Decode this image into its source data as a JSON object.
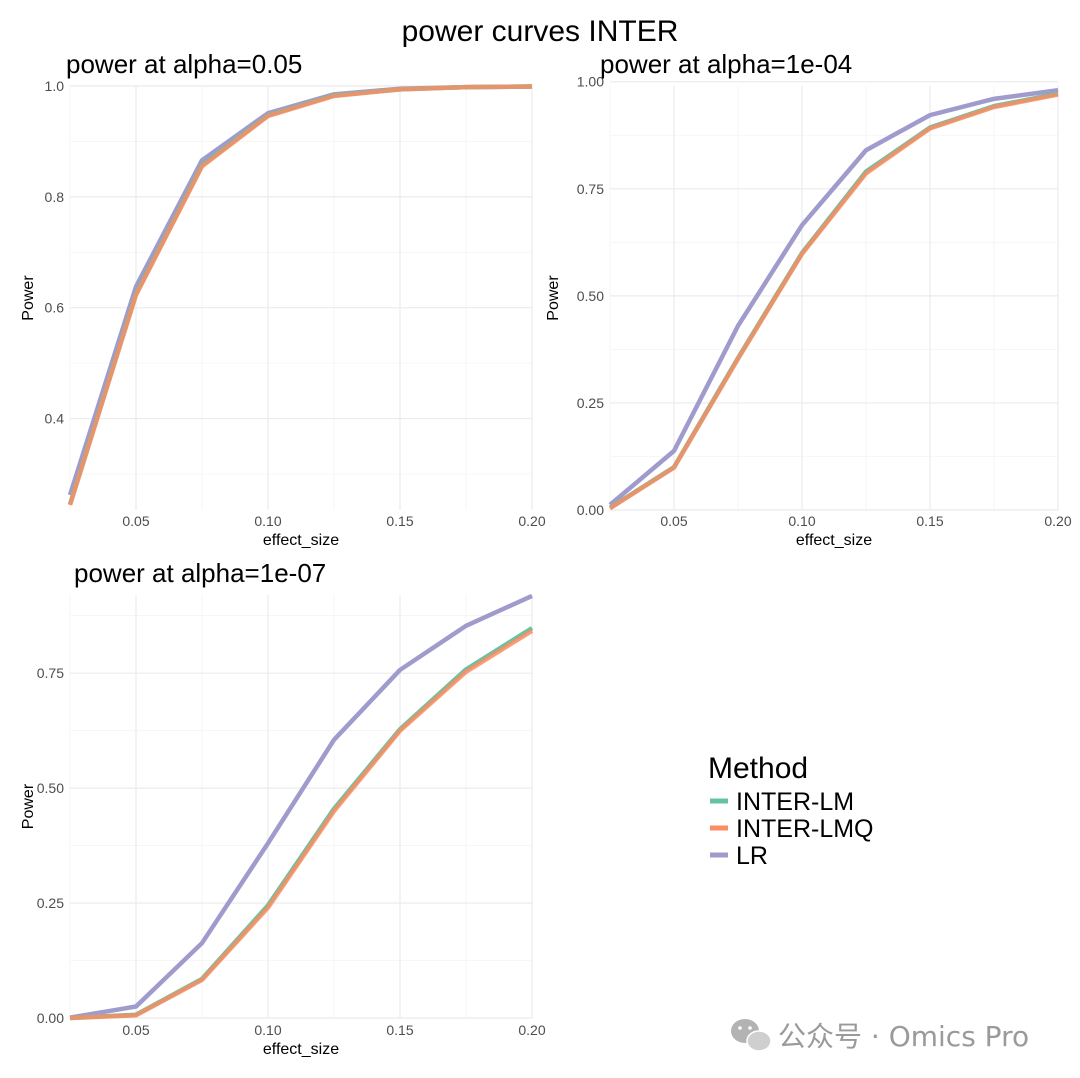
{
  "title": "power curves INTER",
  "legend": {
    "title": "Method",
    "position": "right-center",
    "items": [
      {
        "label": "INTER-LM",
        "color": "#66c2a5"
      },
      {
        "label": "INTER-LMQ",
        "color": "#fc8d62"
      },
      {
        "label": "LR",
        "color": "#9f9bcc"
      }
    ]
  },
  "watermark": {
    "text": "公众号 · Omics Pro",
    "icon": "wechat-icon"
  },
  "chart_data": [
    {
      "type": "line",
      "title": "power at alpha=0.05",
      "xlabel": "effect_size",
      "ylabel": "Power",
      "xlim": [
        0.025,
        0.2
      ],
      "ylim": [
        0.235,
        1.0
      ],
      "xticks": [
        0.05,
        0.1,
        0.15,
        0.2
      ],
      "xtick_labels": [
        "0.05",
        "0.10",
        "0.15",
        "0.20"
      ],
      "yticks": [
        0.4,
        0.6,
        0.8,
        1.0
      ],
      "ytick_labels": [
        "0.4",
        "0.6",
        "0.8",
        "1.0"
      ],
      "grid": true,
      "x": [
        0.025,
        0.05,
        0.075,
        0.1,
        0.125,
        0.15,
        0.175,
        0.2
      ],
      "series": [
        {
          "name": "INTER-LM",
          "color": "#66c2a5",
          "values": [
            0.245,
            0.625,
            0.857,
            0.947,
            0.983,
            0.994,
            0.998,
            0.999
          ]
        },
        {
          "name": "INTER-LMQ",
          "color": "#fc8d62",
          "values": [
            0.244,
            0.623,
            0.855,
            0.946,
            0.982,
            0.994,
            0.998,
            0.999
          ]
        },
        {
          "name": "LR",
          "color": "#9f9bcc",
          "values": [
            0.262,
            0.638,
            0.866,
            0.951,
            0.985,
            0.995,
            0.998,
            0.999
          ]
        }
      ]
    },
    {
      "type": "line",
      "title": "power at alpha=1e-04",
      "xlabel": "effect_size",
      "ylabel": "Power",
      "xlim": [
        0.025,
        0.2
      ],
      "ylim": [
        0.0,
        0.99
      ],
      "xticks": [
        0.05,
        0.1,
        0.15,
        0.2
      ],
      "xtick_labels": [
        "0.05",
        "0.10",
        "0.15",
        "0.20"
      ],
      "yticks": [
        0.0,
        0.25,
        0.5,
        0.75,
        1.0
      ],
      "ytick_labels": [
        "0.00",
        "0.25",
        "0.50",
        "0.75",
        "1.00"
      ],
      "grid": true,
      "x": [
        0.025,
        0.05,
        0.075,
        0.1,
        0.125,
        0.15,
        0.175,
        0.2
      ],
      "series": [
        {
          "name": "INTER-LM",
          "color": "#66c2a5",
          "values": [
            0.005,
            0.1,
            0.355,
            0.6,
            0.79,
            0.893,
            0.943,
            0.972
          ]
        },
        {
          "name": "INTER-LMQ",
          "color": "#fc8d62",
          "values": [
            0.004,
            0.099,
            0.353,
            0.598,
            0.786,
            0.891,
            0.941,
            0.97
          ]
        },
        {
          "name": "LR",
          "color": "#9f9bcc",
          "values": [
            0.012,
            0.138,
            0.43,
            0.665,
            0.84,
            0.922,
            0.96,
            0.98
          ]
        }
      ]
    },
    {
      "type": "line",
      "title": "power at alpha=1e-07",
      "xlabel": "effect_size",
      "ylabel": "Power",
      "xlim": [
        0.025,
        0.2
      ],
      "ylim": [
        0.0,
        0.92
      ],
      "xticks": [
        0.05,
        0.1,
        0.15,
        0.2
      ],
      "xtick_labels": [
        "0.05",
        "0.10",
        "0.15",
        "0.20"
      ],
      "yticks": [
        0.0,
        0.25,
        0.5,
        0.75
      ],
      "ytick_labels": [
        "0.00",
        "0.25",
        "0.50",
        "0.75"
      ],
      "grid": true,
      "x": [
        0.025,
        0.05,
        0.075,
        0.1,
        0.125,
        0.15,
        0.175,
        0.2
      ],
      "series": [
        {
          "name": "INTER-LM",
          "color": "#66c2a5",
          "values": [
            0.0,
            0.007,
            0.085,
            0.245,
            0.455,
            0.628,
            0.758,
            0.848
          ]
        },
        {
          "name": "INTER-LMQ",
          "color": "#fc8d62",
          "values": [
            0.0,
            0.006,
            0.083,
            0.24,
            0.45,
            0.625,
            0.753,
            0.842
          ]
        },
        {
          "name": "LR",
          "color": "#9f9bcc",
          "values": [
            0.001,
            0.025,
            0.163,
            0.38,
            0.605,
            0.757,
            0.853,
            0.918
          ]
        }
      ]
    }
  ]
}
